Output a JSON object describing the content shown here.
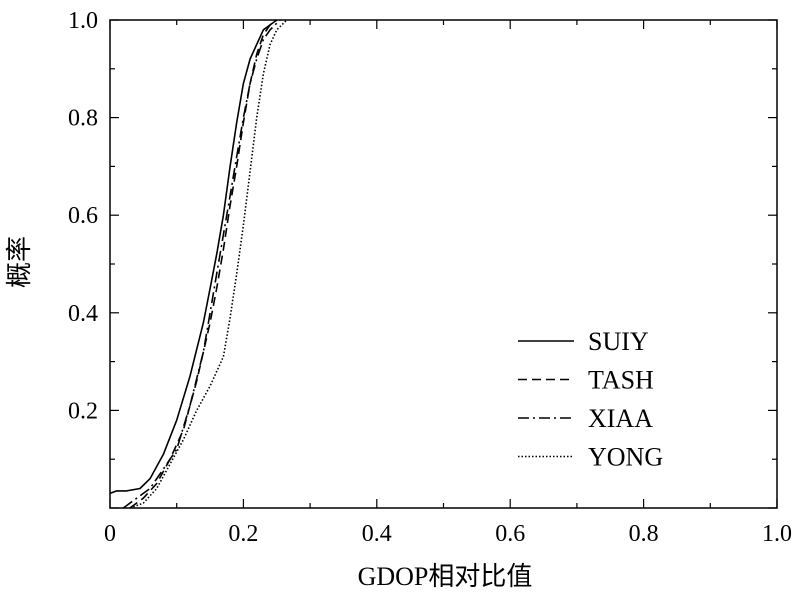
{
  "chart_data": {
    "type": "line",
    "title": "",
    "xlabel": "GDOP相对比值",
    "ylabel": "概率",
    "xlim": [
      0,
      1.0
    ],
    "ylim": [
      0,
      1.0
    ],
    "x_ticks": [
      "0",
      "0.2",
      "0.4",
      "0.6",
      "0.8",
      "1.0"
    ],
    "y_ticks": [
      "0.2",
      "0.4",
      "0.6",
      "0.8",
      "1.0"
    ],
    "grid": false,
    "legend_placement": "lower-right",
    "series": [
      {
        "name": "SUIY",
        "line_style": "solid",
        "color": "#000000",
        "x": [
          0,
          0.01,
          0.025,
          0.045,
          0.06,
          0.08,
          0.1,
          0.12,
          0.14,
          0.15,
          0.16,
          0.17,
          0.18,
          0.19,
          0.2,
          0.21,
          0.22,
          0.23,
          0.24,
          0.25
        ],
        "y": [
          0.03,
          0.035,
          0.035,
          0.04,
          0.06,
          0.11,
          0.18,
          0.27,
          0.38,
          0.45,
          0.52,
          0.6,
          0.7,
          0.79,
          0.87,
          0.92,
          0.95,
          0.98,
          0.99,
          1.0
        ]
      },
      {
        "name": "TASH",
        "line_style": "dashed",
        "color": "#000000",
        "x": [
          0.03,
          0.05,
          0.07,
          0.09,
          0.11,
          0.13,
          0.15,
          0.16,
          0.17,
          0.18,
          0.19,
          0.2,
          0.21,
          0.22,
          0.23,
          0.24,
          0.25
        ],
        "y": [
          0.0,
          0.02,
          0.05,
          0.1,
          0.16,
          0.26,
          0.38,
          0.45,
          0.53,
          0.62,
          0.7,
          0.79,
          0.87,
          0.93,
          0.97,
          0.99,
          1.0
        ]
      },
      {
        "name": "XIAA",
        "line_style": "dashdot",
        "color": "#000000",
        "x": [
          0.02,
          0.04,
          0.06,
          0.08,
          0.1,
          0.12,
          0.14,
          0.15,
          0.16,
          0.17,
          0.18,
          0.19,
          0.2,
          0.21,
          0.22,
          0.23,
          0.24,
          0.255
        ],
        "y": [
          0.0,
          0.02,
          0.04,
          0.08,
          0.12,
          0.21,
          0.32,
          0.4,
          0.48,
          0.56,
          0.64,
          0.72,
          0.8,
          0.87,
          0.92,
          0.96,
          0.98,
          1.0
        ]
      },
      {
        "name": "YONG",
        "line_style": "dotted",
        "color": "#000000",
        "x": [
          0.03,
          0.05,
          0.07,
          0.09,
          0.11,
          0.13,
          0.15,
          0.17,
          0.18,
          0.19,
          0.2,
          0.21,
          0.22,
          0.23,
          0.24,
          0.25,
          0.265
        ],
        "y": [
          0.0,
          0.01,
          0.04,
          0.09,
          0.14,
          0.2,
          0.25,
          0.31,
          0.39,
          0.48,
          0.58,
          0.69,
          0.8,
          0.89,
          0.95,
          0.98,
          1.0
        ]
      }
    ]
  }
}
